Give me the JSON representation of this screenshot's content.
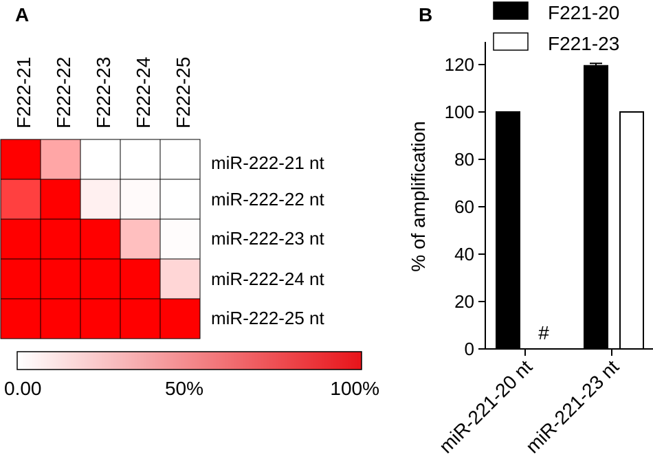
{
  "chart_data": [
    {
      "panel_label": "A",
      "type": "heatmap",
      "title": "",
      "columns": [
        "F222-21",
        "F222-22",
        "F222-23",
        "F222-24",
        "F222-25"
      ],
      "rows": [
        "miR-222-21 nt",
        "miR-222-22 nt",
        "miR-222-23 nt",
        "miR-222-24 nt",
        "miR-222-25 nt"
      ],
      "values": [
        [
          100,
          35,
          0,
          0,
          0
        ],
        [
          75,
          100,
          6,
          2,
          0
        ],
        [
          100,
          100,
          100,
          25,
          1
        ],
        [
          100,
          100,
          100,
          100,
          16
        ],
        [
          100,
          100,
          100,
          100,
          100
        ]
      ],
      "value_range": [
        0,
        100
      ],
      "colorbar": {
        "low_color": "#ffffff",
        "high_color": "#e8141a",
        "tick_labels": [
          "0.00",
          "50%",
          "100%"
        ]
      }
    },
    {
      "panel_label": "B",
      "type": "bar",
      "title": "",
      "xlabel": "",
      "ylabel": "% of amplification",
      "ylim": [
        0,
        130
      ],
      "yticks": [
        "0",
        "20",
        "40",
        "60",
        "80",
        "100",
        "120"
      ],
      "ytick_values": [
        0,
        20,
        40,
        60,
        80,
        100,
        120
      ],
      "categories": [
        "miR-221-20 nt",
        "miR-221-23 nt"
      ],
      "series": [
        {
          "name": "F221-20",
          "color": "#000000",
          "values": [
            100,
            119.5
          ],
          "errors": [
            0,
            1
          ]
        },
        {
          "name": "F221-23",
          "color": "#ffffff",
          "values": [
            0,
            100
          ],
          "errors": [
            0,
            0
          ]
        }
      ],
      "annotations": [
        {
          "text": "#",
          "category_index": 0,
          "series_index": 1
        }
      ],
      "legend_position": "top-right"
    }
  ]
}
